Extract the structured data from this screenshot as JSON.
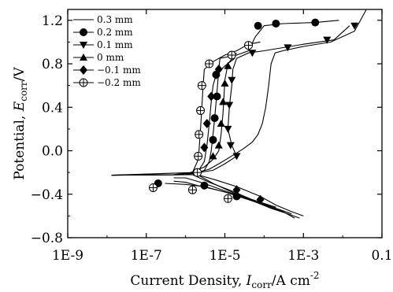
{
  "chart_data": {
    "type": "line",
    "title": "",
    "x_scale": "log",
    "xlim": [
      1e-09,
      0.1
    ],
    "ylim": [
      -0.8,
      1.3
    ],
    "x_ticks": [
      1e-09,
      1e-07,
      1e-05,
      0.001,
      0.1
    ],
    "x_tick_labels": [
      "1E-9",
      "1E-7",
      "1E-5",
      "1E-3",
      "0.1"
    ],
    "y_ticks": [
      -0.8,
      -0.4,
      0.0,
      0.4,
      0.8,
      1.2
    ],
    "y_tick_labels": [
      "−0.8",
      "−0.4",
      "0.0",
      "0.4",
      "0.8",
      "1.2"
    ],
    "xlabel": {
      "main": "Current Density, ",
      "italic": "I",
      "sub": "corr",
      "tail": "/A cm",
      "sup": "-2"
    },
    "ylabel": {
      "main": "Potential, ",
      "italic": "E",
      "sub": "corr",
      "tail": "/V"
    },
    "grid": false,
    "legend_position": "top-left",
    "series": [
      {
        "name": "0.3 mm",
        "marker": "none",
        "anodic": [
          [
            2e-06,
            -0.2
          ],
          [
            4e-06,
            -0.17
          ],
          [
            7e-06,
            -0.12
          ],
          [
            1.2e-05,
            -0.07
          ],
          [
            2e-05,
            -0.02
          ],
          [
            3e-05,
            0.02
          ],
          [
            5e-05,
            0.08
          ],
          [
            7e-05,
            0.15
          ],
          [
            9e-05,
            0.25
          ],
          [
            0.00011,
            0.4
          ],
          [
            0.00013,
            0.6
          ],
          [
            0.00015,
            0.8
          ],
          [
            0.00019,
            0.9
          ],
          [
            0.0003,
            0.92
          ],
          [
            0.001,
            0.96
          ],
          [
            0.005,
            1.0
          ],
          [
            0.02,
            1.1
          ],
          [
            0.04,
            1.3
          ]
        ],
        "cathodic": [
          [
            2e-06,
            -0.22
          ],
          [
            5e-06,
            -0.3
          ],
          [
            1.5e-05,
            -0.38
          ],
          [
            5e-05,
            -0.46
          ],
          [
            0.00015,
            -0.53
          ],
          [
            0.0004,
            -0.58
          ],
          [
            0.0008,
            -0.62
          ]
        ],
        "markers": []
      },
      {
        "name": "0.2 mm",
        "marker": "circle",
        "anodic": [
          [
            1.5e-06,
            -0.22
          ],
          [
            3e-06,
            -0.18
          ],
          [
            4e-06,
            -0.1
          ],
          [
            4.5e-06,
            0.0
          ],
          [
            5e-06,
            0.15
          ],
          [
            5.5e-06,
            0.3
          ],
          [
            6e-06,
            0.45
          ],
          [
            6.5e-06,
            0.6
          ],
          [
            7e-06,
            0.75
          ],
          [
            7.5e-06,
            0.85
          ],
          [
            2e-05,
            0.88
          ],
          [
            4e-05,
            0.92
          ],
          [
            6e-05,
            1.05
          ],
          [
            0.0001,
            1.15
          ],
          [
            0.0003,
            1.17
          ],
          [
            0.002,
            1.18
          ],
          [
            0.008,
            1.2
          ]
        ],
        "cathodic": [
          [
            5e-07,
            -0.28
          ],
          [
            1e-06,
            -0.29
          ],
          [
            2e-06,
            -0.32
          ],
          [
            8e-06,
            -0.37
          ],
          [
            3e-05,
            -0.43
          ],
          [
            0.0001,
            -0.5
          ],
          [
            0.0003,
            -0.56
          ],
          [
            0.0006,
            -0.62
          ]
        ],
        "markers": [
          [
            6e-06,
            0.7
          ],
          [
            6.3e-06,
            0.5
          ],
          [
            5.5e-06,
            0.3
          ],
          [
            5e-06,
            0.1
          ],
          [
            7e-05,
            1.15
          ],
          [
            0.0002,
            1.17
          ],
          [
            0.002,
            1.18
          ],
          [
            2e-07,
            -0.3
          ],
          [
            3e-06,
            -0.32
          ],
          [
            2e-05,
            -0.42
          ]
        ]
      },
      {
        "name": "0.1 mm",
        "marker": "triangle-down",
        "anodic": [
          [
            1e-06,
            -0.22
          ],
          [
            5e-06,
            -0.18
          ],
          [
            1e-05,
            -0.12
          ],
          [
            2e-05,
            -0.05
          ],
          [
            1.5e-05,
            0.05
          ],
          [
            1.2e-05,
            0.2
          ],
          [
            1.3e-05,
            0.4
          ],
          [
            1.5e-05,
            0.6
          ],
          [
            1.6e-05,
            0.75
          ],
          [
            2e-05,
            0.85
          ],
          [
            4e-05,
            0.9
          ],
          [
            0.0001,
            0.92
          ],
          [
            0.001,
            0.98
          ],
          [
            0.006,
            1.02
          ],
          [
            0.015,
            1.15
          ]
        ],
        "cathodic": [
          [
            2e-06,
            -0.22
          ],
          [
            6e-06,
            -0.27
          ],
          [
            2e-05,
            -0.33
          ],
          [
            8e-05,
            -0.42
          ],
          [
            0.0002,
            -0.5
          ],
          [
            0.0005,
            -0.56
          ],
          [
            0.001,
            -0.6
          ]
        ],
        "markers": [
          [
            1.5e-05,
            0.65
          ],
          [
            1.3e-05,
            0.42
          ],
          [
            1.2e-05,
            0.2
          ],
          [
            1.4e-05,
            0.05
          ],
          [
            2e-05,
            -0.05
          ],
          [
            5e-05,
            0.9
          ],
          [
            0.0004,
            0.95
          ],
          [
            0.004,
            1.02
          ],
          [
            0.02,
            1.15
          ]
        ]
      },
      {
        "name": "0 mm",
        "marker": "triangle-up",
        "anodic": [
          [
            1e-06,
            -0.22
          ],
          [
            3e-06,
            -0.15
          ],
          [
            5e-06,
            -0.08
          ],
          [
            7e-06,
            0.0
          ],
          [
            8e-06,
            0.15
          ],
          [
            9e-06,
            0.35
          ],
          [
            9.5e-06,
            0.5
          ],
          [
            1e-05,
            0.65
          ],
          [
            1.2e-05,
            0.8
          ],
          [
            2e-05,
            0.9
          ]
        ],
        "cathodic": [
          [
            1.5e-06,
            -0.22
          ],
          [
            4e-06,
            -0.29
          ],
          [
            1.5e-05,
            -0.37
          ],
          [
            5e-05,
            -0.45
          ],
          [
            0.0002,
            -0.53
          ],
          [
            0.0005,
            -0.58
          ]
        ],
        "markers": [
          [
            1e-05,
            0.62
          ],
          [
            9e-06,
            0.45
          ],
          [
            8e-06,
            0.25
          ],
          [
            7e-06,
            0.05
          ],
          [
            5e-06,
            -0.05
          ],
          [
            1.2e-05,
            0.78
          ]
        ]
      },
      {
        "name": "−0.1 mm",
        "marker": "diamond",
        "anodic": [
          [
            6e-07,
            -0.22
          ],
          [
            2e-06,
            -0.2
          ],
          [
            3e-06,
            -0.1
          ],
          [
            3.5e-06,
            0.05
          ],
          [
            4e-06,
            0.25
          ],
          [
            4.5e-06,
            0.45
          ],
          [
            5e-06,
            0.6
          ],
          [
            6e-06,
            0.7
          ],
          [
            1e-05,
            0.78
          ],
          [
            1.8e-05,
            0.85
          ]
        ],
        "cathodic": [
          [
            5e-07,
            -0.25
          ],
          [
            1e-06,
            -0.25
          ],
          [
            3e-06,
            -0.3
          ],
          [
            1e-05,
            -0.37
          ],
          [
            5e-05,
            -0.45
          ],
          [
            0.0002,
            -0.52
          ]
        ],
        "markers": [
          [
            6e-06,
            0.7
          ],
          [
            4.5e-06,
            0.5
          ],
          [
            3.5e-06,
            0.25
          ],
          [
            3e-06,
            0.03
          ],
          [
            7e-06,
            0.75
          ],
          [
            2e-05,
            -0.36
          ],
          [
            8e-05,
            -0.45
          ]
        ]
      },
      {
        "name": "−0.2 mm",
        "marker": "circle-plus",
        "anodic": [
          [
            5e-07,
            -0.22
          ],
          [
            1.5e-06,
            -0.2
          ],
          [
            2e-06,
            -0.1
          ],
          [
            2.2e-06,
            0.0
          ],
          [
            2.4e-06,
            0.2
          ],
          [
            2.6e-06,
            0.4
          ],
          [
            2.8e-06,
            0.6
          ],
          [
            3e-06,
            0.75
          ],
          [
            5e-06,
            0.82
          ],
          [
            1e-05,
            0.88
          ],
          [
            2e-05,
            0.92
          ],
          [
            4e-05,
            0.98
          ],
          [
            8e-05,
            1.0
          ]
        ],
        "cathodic": [
          [
            3e-07,
            -0.3
          ],
          [
            1e-06,
            -0.31
          ],
          [
            3e-06,
            -0.33
          ],
          [
            1e-05,
            -0.38
          ],
          [
            4e-05,
            -0.45
          ],
          [
            0.00015,
            -0.52
          ]
        ],
        "markers": [
          [
            2.6e-06,
            0.6
          ],
          [
            2.4e-06,
            0.37
          ],
          [
            2.2e-06,
            0.15
          ],
          [
            2.1e-06,
            -0.05
          ],
          [
            2e-06,
            -0.2
          ],
          [
            4e-06,
            0.8
          ],
          [
            1.5e-05,
            0.88
          ],
          [
            4e-05,
            0.97
          ],
          [
            1.5e-07,
            -0.34
          ],
          [
            1.5e-06,
            -0.36
          ],
          [
            1.2e-05,
            -0.44
          ]
        ]
      }
    ]
  }
}
